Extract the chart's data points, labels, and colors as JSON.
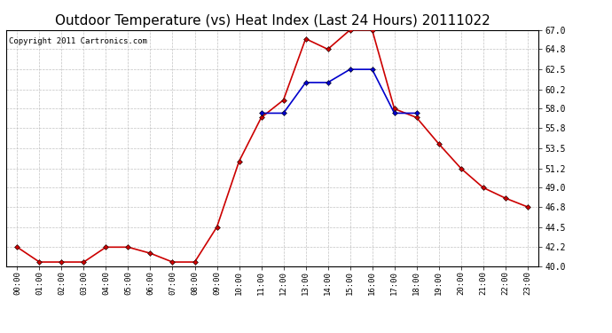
{
  "title": "Outdoor Temperature (vs) Heat Index (Last 24 Hours) 20111022",
  "copyright": "Copyright 2011 Cartronics.com",
  "x_labels": [
    "00:00",
    "01:00",
    "02:00",
    "03:00",
    "04:00",
    "05:00",
    "06:00",
    "07:00",
    "08:00",
    "09:00",
    "10:00",
    "11:00",
    "12:00",
    "13:00",
    "14:00",
    "15:00",
    "16:00",
    "17:00",
    "18:00",
    "19:00",
    "20:00",
    "21:00",
    "22:00",
    "23:00"
  ],
  "temp_data": [
    42.2,
    40.5,
    40.5,
    40.5,
    42.2,
    42.2,
    41.5,
    40.5,
    40.5,
    44.5,
    52.0,
    57.0,
    59.0,
    66.0,
    64.8,
    67.0,
    67.0,
    58.0,
    57.0,
    54.0,
    51.2,
    49.0,
    47.8,
    46.8
  ],
  "heat_data": [
    null,
    null,
    null,
    null,
    null,
    null,
    null,
    null,
    null,
    null,
    null,
    57.5,
    57.5,
    61.0,
    61.0,
    62.5,
    62.5,
    57.5,
    57.5,
    null,
    null,
    null,
    null,
    null
  ],
  "temp_color": "#cc0000",
  "heat_color": "#0000cc",
  "bg_color": "#ffffff",
  "plot_bg_color": "#ffffff",
  "grid_color": "#bbbbbb",
  "ylim": [
    40.0,
    67.0
  ],
  "yticks": [
    40.0,
    42.2,
    44.5,
    46.8,
    49.0,
    51.2,
    53.5,
    55.8,
    58.0,
    60.2,
    62.5,
    64.8,
    67.0
  ],
  "title_fontsize": 11,
  "copyright_fontsize": 6.5,
  "marker_size": 3,
  "linewidth": 1.2
}
